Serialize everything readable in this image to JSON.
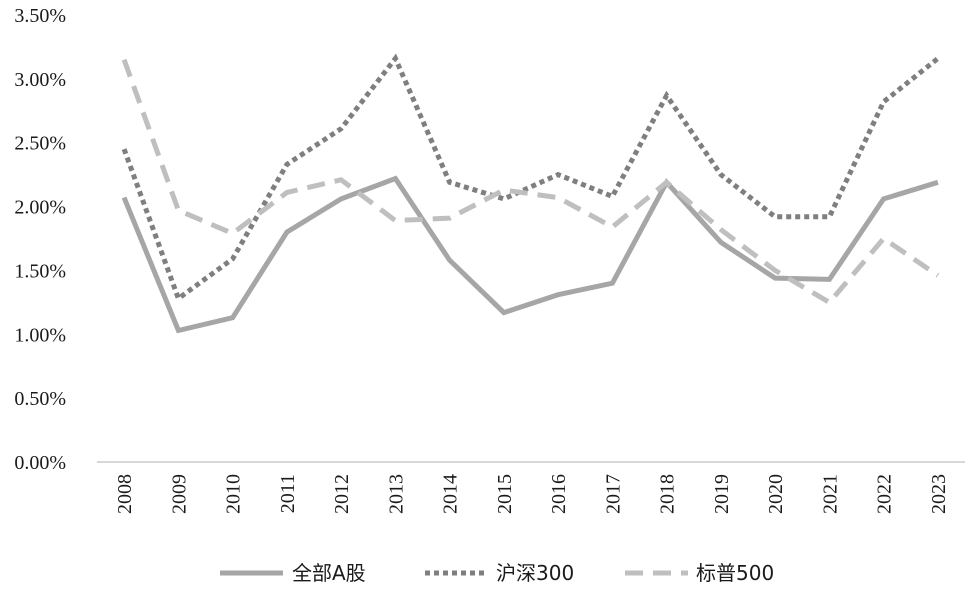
{
  "chart_data": {
    "type": "line",
    "categories": [
      "2008",
      "2009",
      "2010",
      "2011",
      "2012",
      "2013",
      "2014",
      "2015",
      "2016",
      "2017",
      "2018",
      "2019",
      "2020",
      "2021",
      "2022",
      "2023"
    ],
    "y_ticks": [
      "0.00%",
      "0.50%",
      "1.00%",
      "1.50%",
      "2.00%",
      "2.50%",
      "3.00%",
      "3.50%"
    ],
    "ylim": [
      0,
      3.5
    ],
    "grid": false,
    "legend_position": "bottom",
    "series": [
      {
        "name": "全部A股",
        "style": "solid",
        "color": "#a6a6a6",
        "values": [
          2.07,
          1.03,
          1.13,
          1.8,
          2.06,
          2.22,
          1.58,
          1.17,
          1.31,
          1.4,
          2.19,
          1.72,
          1.44,
          1.43,
          2.06,
          2.19
        ]
      },
      {
        "name": "沪深300",
        "style": "dotted",
        "color": "#7f7f7f",
        "values": [
          2.45,
          1.28,
          1.59,
          2.33,
          2.61,
          3.16,
          2.19,
          2.06,
          2.25,
          2.08,
          2.87,
          2.25,
          1.92,
          1.92,
          2.82,
          3.16
        ]
      },
      {
        "name": "标普500",
        "style": "dashed",
        "color": "#bfbfbf",
        "values": [
          3.15,
          1.97,
          1.79,
          2.11,
          2.21,
          1.89,
          1.91,
          2.13,
          2.07,
          1.84,
          2.19,
          1.82,
          1.5,
          1.25,
          1.75,
          1.46
        ]
      }
    ]
  }
}
